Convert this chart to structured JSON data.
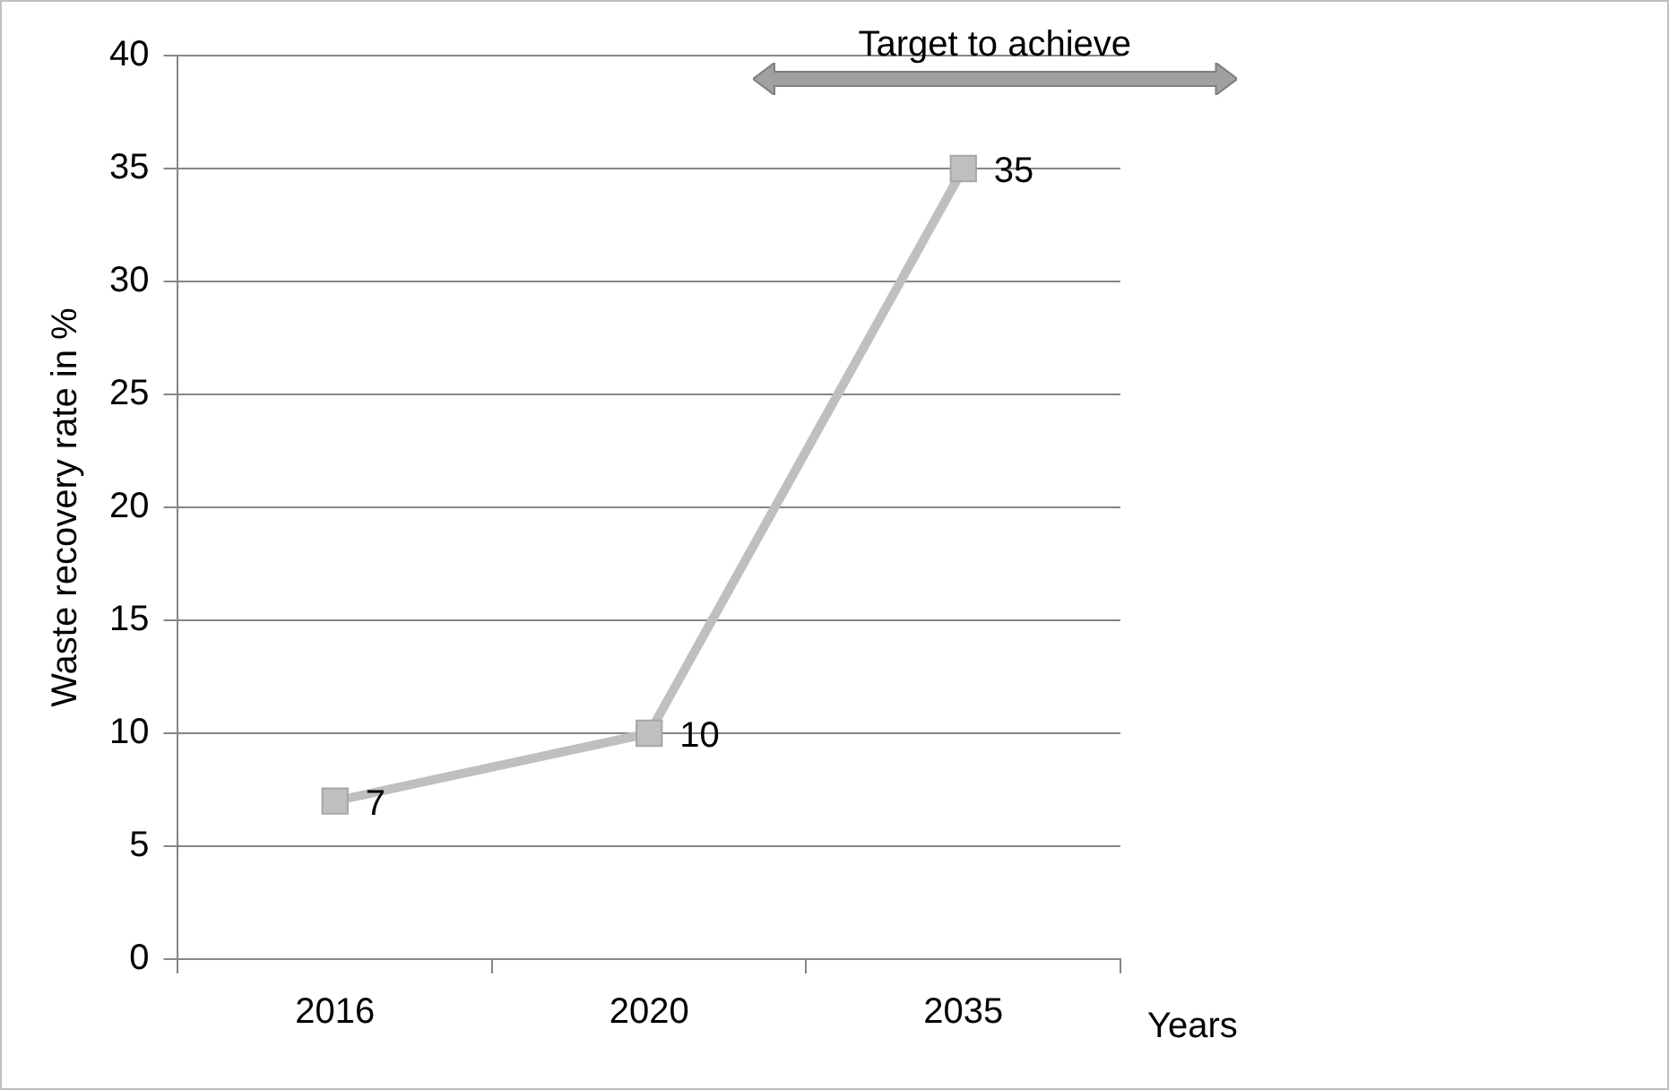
{
  "chart_data": {
    "type": "line",
    "ylabel": "Waste recovery rate in %",
    "xlabel": "Years",
    "categories": [
      "2016",
      "2020",
      "2035"
    ],
    "series": [
      {
        "color": "#bfbfbf",
        "values": [
          7,
          10,
          35
        ]
      }
    ],
    "ylim": [
      0,
      40
    ],
    "yticks": [
      0,
      5,
      10,
      15,
      20,
      25,
      30,
      35,
      40
    ],
    "grid": "y",
    "legend": false,
    "marker": "square",
    "line_style": "solid",
    "data_labels": true,
    "annotations": [
      "Target to achieve"
    ]
  }
}
